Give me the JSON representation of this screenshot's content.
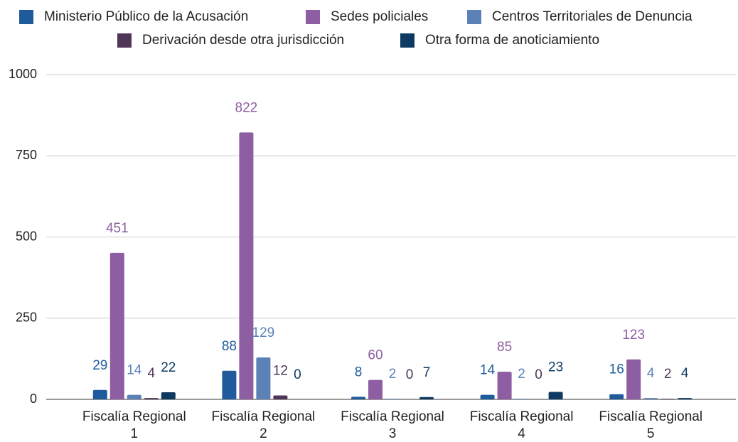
{
  "chart_data": {
    "type": "bar",
    "categories": [
      "Fiscalía Regional 1",
      "Fiscalía Regional 2",
      "Fiscalía Regional 3",
      "Fiscalía Regional 4",
      "Fiscalía Regional 5"
    ],
    "series": [
      {
        "name": "Ministerio Público de la Acusación",
        "color": "#1f5b9c",
        "values": [
          29,
          88,
          8,
          14,
          16
        ]
      },
      {
        "name": "Sedes policiales",
        "color": "#8e5ea2",
        "values": [
          451,
          822,
          60,
          85,
          123
        ]
      },
      {
        "name": "Centros Territoriales de Denuncia",
        "color": "#5b81b7",
        "values": [
          14,
          129,
          2,
          2,
          4
        ]
      },
      {
        "name": "Derivación desde otra jurisdicción",
        "color": "#4f3558",
        "values": [
          4,
          12,
          0,
          0,
          2
        ]
      },
      {
        "name": "Otra forma de anoticiamiento",
        "color": "#0e3a62",
        "values": [
          22,
          0,
          7,
          23,
          4
        ]
      }
    ],
    "ylim": [
      0,
      1000
    ],
    "yticks": [
      0,
      250,
      500,
      750,
      1000
    ],
    "grid": true,
    "legend": "top"
  }
}
